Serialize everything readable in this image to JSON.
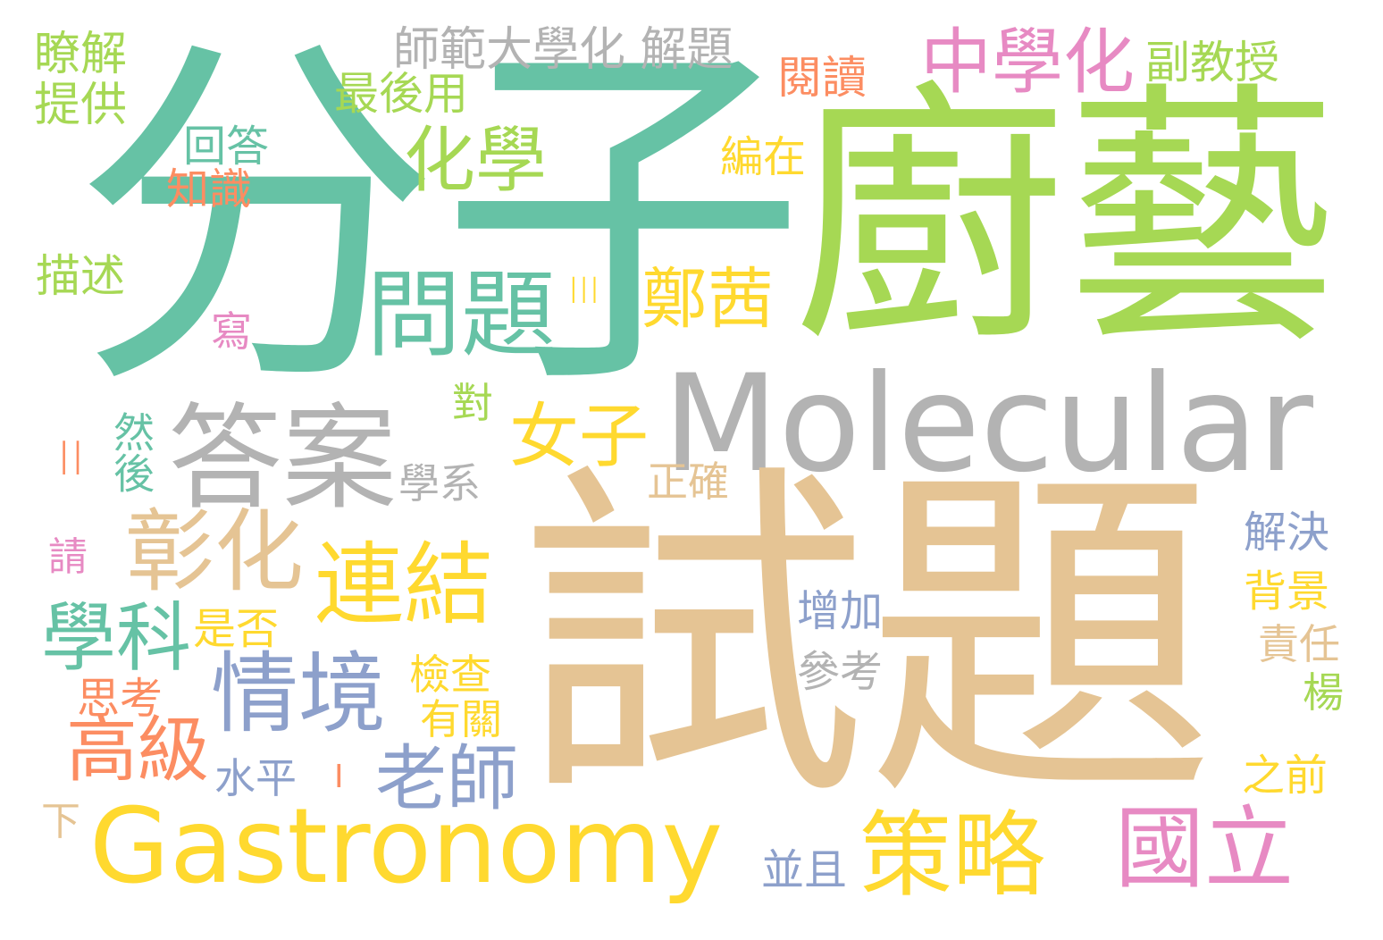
{
  "words": [
    {
      "id": "fenzi",
      "text": "分子",
      "color": "#66c2a5"
    },
    {
      "id": "chuyi",
      "text": "廚藝",
      "color": "#a6d854"
    },
    {
      "id": "molecular",
      "text": "Molecular",
      "color": "#b3b3b3"
    },
    {
      "id": "shiti",
      "text": "試題",
      "color": "#e5c494"
    },
    {
      "id": "gastronomy",
      "text": "Gastronomy",
      "color": "#ffd92f"
    },
    {
      "id": "zhongxuehua",
      "text": "中學化",
      "color": "#e78ac3"
    },
    {
      "id": "wenti",
      "text": "問題",
      "color": "#66c2a5"
    },
    {
      "id": "daan",
      "text": "答案",
      "color": "#b3b3b3"
    },
    {
      "id": "huaxue",
      "text": "化學",
      "color": "#a6d854"
    },
    {
      "id": "zhanghua",
      "text": "彰化",
      "color": "#e5c494"
    },
    {
      "id": "lianjie",
      "text": "連結",
      "color": "#ffd92f"
    },
    {
      "id": "qingjing",
      "text": "情境",
      "color": "#8da0cb"
    },
    {
      "id": "celue",
      "text": "策略",
      "color": "#ffd92f"
    },
    {
      "id": "guoli",
      "text": "國立",
      "color": "#e78ac3"
    },
    {
      "id": "xueke",
      "text": "學科",
      "color": "#66c2a5"
    },
    {
      "id": "gaoji",
      "text": "高級",
      "color": "#fc8d62"
    },
    {
      "id": "laoshi",
      "text": "老師",
      "color": "#8da0cb"
    },
    {
      "id": "zhengqian",
      "text": "鄭茜",
      "color": "#ffd92f"
    },
    {
      "id": "nvzi",
      "text": "女子",
      "color": "#ffd92f"
    },
    {
      "id": "shifan",
      "text": "師範大學化 解題",
      "color": "#b3b3b3"
    },
    {
      "id": "fujiaoshou",
      "text": "副教授",
      "color": "#a6d854"
    },
    {
      "id": "yuedu",
      "text": "閱讀",
      "color": "#fc8d62"
    },
    {
      "id": "liaojie",
      "text": "瞭解",
      "color": "#a6d854"
    },
    {
      "id": "tigong",
      "text": "提供",
      "color": "#a6d854"
    },
    {
      "id": "zuihouyong",
      "text": "最後用",
      "color": "#a6d854"
    },
    {
      "id": "huida",
      "text": "回答",
      "color": "#66c2a5"
    },
    {
      "id": "zhishi",
      "text": "知識",
      "color": "#fc8d62"
    },
    {
      "id": "bianzai",
      "text": "編在",
      "color": "#ffd92f"
    },
    {
      "id": "miaoshu",
      "text": "描述",
      "color": "#a6d854"
    },
    {
      "id": "xie",
      "text": "寫",
      "color": "#e78ac3"
    },
    {
      "id": "dui",
      "text": "對",
      "color": "#a6d854"
    },
    {
      "id": "ranhou",
      "text": "然後",
      "color": "#66c2a5"
    },
    {
      "id": "xuexi",
      "text": "學系",
      "color": "#b3b3b3"
    },
    {
      "id": "zhengque",
      "text": "正確",
      "color": "#e5c494"
    },
    {
      "id": "qing",
      "text": "請",
      "color": "#e78ac3"
    },
    {
      "id": "shifou",
      "text": "是否",
      "color": "#ffd92f"
    },
    {
      "id": "sikao",
      "text": "思考",
      "color": "#fc8d62"
    },
    {
      "id": "jiancha",
      "text": "檢查",
      "color": "#ffd92f"
    },
    {
      "id": "youguan",
      "text": "有關",
      "color": "#ffd92f"
    },
    {
      "id": "shuiping",
      "text": "水平",
      "color": "#8da0cb"
    },
    {
      "id": "xia",
      "text": "下",
      "color": "#e5c494"
    },
    {
      "id": "zengjia",
      "text": "增加",
      "color": "#8da0cb"
    },
    {
      "id": "cankao",
      "text": "參考",
      "color": "#b3b3b3"
    },
    {
      "id": "jiejue",
      "text": "解決",
      "color": "#8da0cb"
    },
    {
      "id": "beijing",
      "text": "背景",
      "color": "#ffd92f"
    },
    {
      "id": "zeren",
      "text": "責任",
      "color": "#e5c494"
    },
    {
      "id": "yang",
      "text": "楊",
      "color": "#a6d854"
    },
    {
      "id": "zhiqian",
      "text": "之前",
      "color": "#ffd92f"
    },
    {
      "id": "bingqie",
      "text": "並且",
      "color": "#8da0cb"
    },
    {
      "id": "bar3",
      "text": "III",
      "color": "#ffd92f"
    },
    {
      "id": "bar2",
      "text": "II",
      "color": "#fc8d62"
    },
    {
      "id": "bar1",
      "text": "I",
      "color": "#fc8d62"
    }
  ]
}
